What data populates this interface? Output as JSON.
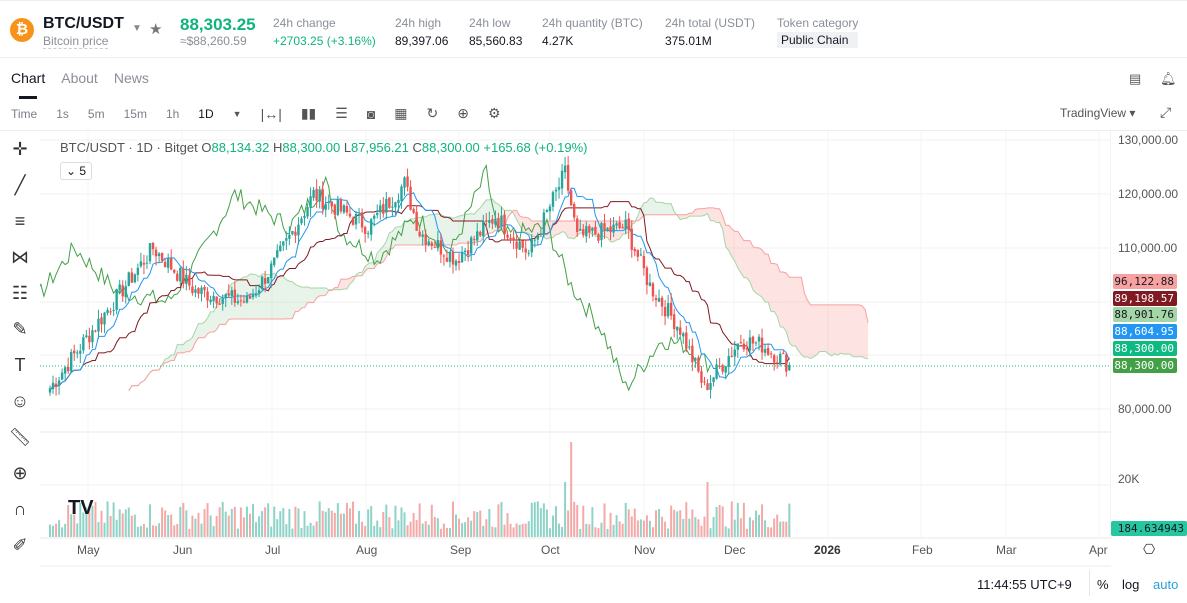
{
  "header": {
    "symbol": "BTC/USDT",
    "subtitle": "Bitcoin price",
    "price": "88,303.25",
    "usd_price": "≈$88,260.59",
    "stats": [
      {
        "label": "24h change",
        "value": "+2703.25 (+3.16%)"
      },
      {
        "label": "24h high",
        "value": "89,397.06"
      },
      {
        "label": "24h low",
        "value": "85,560.83"
      },
      {
        "label": "24h quantity (BTC)",
        "value": "4.27K"
      },
      {
        "label": "24h total (USDT)",
        "value": "375.01M"
      },
      {
        "label": "Token category",
        "value": "Public Chain"
      }
    ]
  },
  "tabs": [
    "Chart",
    "About",
    "News"
  ],
  "toolbar": {
    "time": "Time",
    "intervals": [
      "1s",
      "5m",
      "15m",
      "1h",
      "1D"
    ],
    "tradingview": "TradingView"
  },
  "legend": {
    "title": "BTC/USDT · 1D · Bitget",
    "o_label": "O",
    "o": "88,134.32",
    "h_label": "H",
    "h": "88,300.00",
    "l_label": "L",
    "l": "87,956.21",
    "c_label": "C",
    "c": "88,300.00",
    "change": "+165.68 (+0.19%)",
    "indicator_count": "5"
  },
  "price_axis": [
    "130,000.00",
    "120,000.00",
    "110,000.00",
    "80,000.00"
  ],
  "volume_axis": "20K",
  "price_labels": [
    {
      "value": "96,122.88",
      "bg": "#f7a1a1",
      "fg": "#131722"
    },
    {
      "value": "89,198.57",
      "bg": "#801922",
      "fg": "#fff"
    },
    {
      "value": "88,901.76",
      "bg": "#a5d6a7",
      "fg": "#131722"
    },
    {
      "value": "88,604.95",
      "bg": "#2196f3",
      "fg": "#fff"
    },
    {
      "value": "88,300.00",
      "bg": "#0cba82",
      "fg": "#fff"
    },
    {
      "value": "88,300.00",
      "bg": "#43a047",
      "fg": "#fff"
    }
  ],
  "volume_label": "184.634943",
  "time_axis": [
    "May",
    "Jun",
    "Jul",
    "Aug",
    "Sep",
    "Oct",
    "Nov",
    "Dec",
    "2026",
    "Feb",
    "Mar",
    "Apr"
  ],
  "footer": {
    "clock": "11:44:55 UTC+9",
    "percent": "%",
    "log": "log",
    "auto": "auto"
  },
  "colors": {
    "up": "#26a69a",
    "down": "#ef5350",
    "accent": "#0fb47d"
  },
  "chart_data": {
    "type": "candlestick",
    "anchors": [
      [
        0,
        84000
      ],
      [
        13,
        94000
      ],
      [
        34,
        110000
      ],
      [
        48,
        102000
      ],
      [
        65,
        100000
      ],
      [
        74,
        107000
      ],
      [
        87,
        120000
      ],
      [
        105,
        114000
      ],
      [
        117,
        122000
      ],
      [
        122,
        113000
      ],
      [
        134,
        108000
      ],
      [
        147,
        116000
      ],
      [
        158,
        109000
      ],
      [
        170,
        124000
      ],
      [
        174,
        112000
      ],
      [
        190,
        114000
      ],
      [
        198,
        103000
      ],
      [
        208,
        95000
      ],
      [
        216,
        84000
      ],
      [
        228,
        93000
      ],
      [
        235,
        92000
      ],
      [
        244,
        88300
      ]
    ]
  }
}
